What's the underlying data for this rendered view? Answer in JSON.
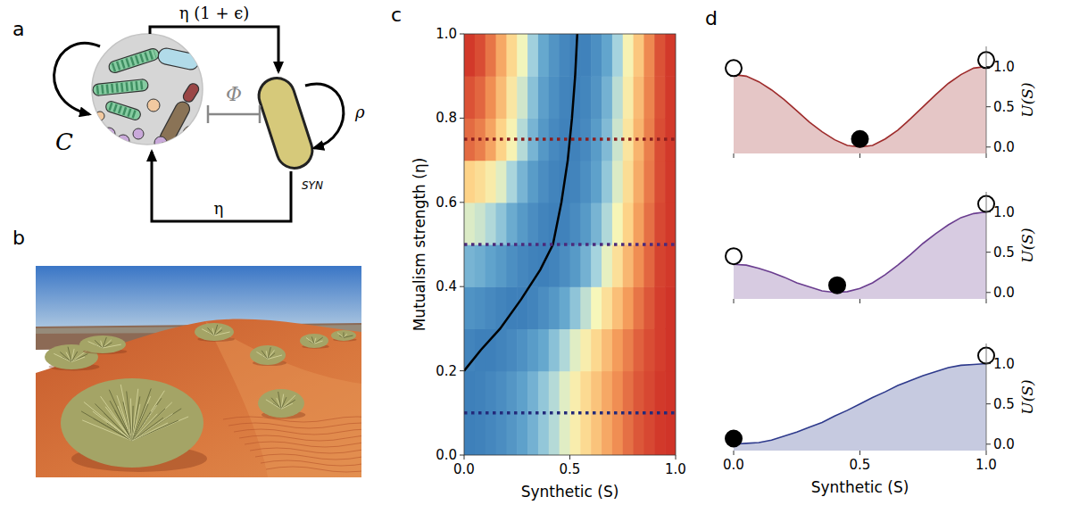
{
  "panel_labels": [
    "a",
    "b",
    "c",
    "d"
  ],
  "diagram": {
    "nodes": [
      {
        "label": "C"
      },
      {
        "label": "SYN"
      }
    ],
    "edges": [
      {
        "label": "η (1 + ϵ)"
      },
      {
        "label": "η"
      },
      {
        "label": "Φ"
      },
      {
        "label": "ρ"
      }
    ]
  },
  "chart_data": [
    {
      "type": "heatmap",
      "x_label": "Synthetic (S)",
      "y_label": "Mutualism strength (η)",
      "xlim": [
        0,
        1
      ],
      "ylim": [
        0,
        1
      ],
      "xticks": [
        {
          "value": 0,
          "label": "0.0"
        },
        0.5,
        {
          "value": 1,
          "label": "1.0"
        }
      ],
      "yticks": [
        {
          "value": 0,
          "label": "0.0"
        },
        0.2,
        0.4,
        0.6,
        0.8,
        {
          "value": 1,
          "label": "1.0"
        }
      ],
      "color_range": [
        0,
        1
      ],
      "x": [
        0.025,
        0.075,
        0.125,
        0.175,
        0.225,
        0.275,
        0.325,
        0.375,
        0.425,
        0.475,
        0.525,
        0.575,
        0.625,
        0.675,
        0.725,
        0.775,
        0.825,
        0.875,
        0.925,
        0.975
      ],
      "y": [
        0.05,
        0.15,
        0.25,
        0.35,
        0.45,
        0.55,
        0.65,
        0.75,
        0.85,
        0.95
      ],
      "cells": [
        [
          0.0,
          0.01,
          0.04,
          0.07,
          0.12,
          0.18,
          0.24,
          0.31,
          0.38,
          0.46,
          0.54,
          0.62,
          0.69,
          0.76,
          0.82,
          0.88,
          0.93,
          0.96,
          0.99,
          1.0
        ],
        [
          0.0,
          0.01,
          0.04,
          0.07,
          0.12,
          0.18,
          0.24,
          0.31,
          0.38,
          0.46,
          0.54,
          0.62,
          0.69,
          0.76,
          0.82,
          0.88,
          0.93,
          0.96,
          0.99,
          1.0
        ],
        [
          0.02,
          0.0,
          0.0,
          0.02,
          0.05,
          0.09,
          0.15,
          0.21,
          0.29,
          0.37,
          0.46,
          0.54,
          0.63,
          0.71,
          0.79,
          0.85,
          0.91,
          0.95,
          0.98,
          1.0
        ],
        [
          0.1,
          0.08,
          0.05,
          0.02,
          0.0,
          0.0,
          0.02,
          0.07,
          0.13,
          0.21,
          0.3,
          0.4,
          0.5,
          0.6,
          0.7,
          0.79,
          0.87,
          0.93,
          0.98,
          1.0
        ],
        [
          0.25,
          0.23,
          0.19,
          0.14,
          0.08,
          0.04,
          0.01,
          0.0,
          0.02,
          0.07,
          0.14,
          0.24,
          0.35,
          0.47,
          0.6,
          0.72,
          0.82,
          0.9,
          0.97,
          0.99
        ],
        [
          0.45,
          0.42,
          0.37,
          0.3,
          0.22,
          0.14,
          0.07,
          0.02,
          0.0,
          0.01,
          0.06,
          0.14,
          0.25,
          0.37,
          0.51,
          0.65,
          0.78,
          0.88,
          0.96,
          0.99
        ],
        [
          0.65,
          0.61,
          0.55,
          0.46,
          0.36,
          0.25,
          0.15,
          0.07,
          0.02,
          0.0,
          0.02,
          0.08,
          0.18,
          0.31,
          0.45,
          0.61,
          0.75,
          0.86,
          0.95,
          0.99
        ],
        [
          0.89,
          0.85,
          0.77,
          0.65,
          0.52,
          0.38,
          0.25,
          0.13,
          0.05,
          0.01,
          0.01,
          0.05,
          0.15,
          0.27,
          0.42,
          0.58,
          0.73,
          0.85,
          0.95,
          0.99
        ],
        [
          0.94,
          0.9,
          0.82,
          0.71,
          0.57,
          0.43,
          0.29,
          0.17,
          0.08,
          0.02,
          0.0,
          0.03,
          0.11,
          0.24,
          0.39,
          0.55,
          0.71,
          0.84,
          0.94,
          0.99
        ],
        [
          0.99,
          0.95,
          0.87,
          0.76,
          0.63,
          0.49,
          0.34,
          0.21,
          0.11,
          0.04,
          0.0,
          0.01,
          0.08,
          0.2,
          0.35,
          0.52,
          0.68,
          0.83,
          0.94,
          0.99
        ]
      ],
      "series": [
        {
          "type": "line",
          "color": "#000000",
          "line_style": "solid",
          "x": [
            0,
            0.08,
            0.17,
            0.27,
            0.36,
            0.42,
            0.46,
            0.49,
            0.51,
            0.525,
            0.535
          ],
          "values": [
            0.2,
            0.25,
            0.3,
            0.37,
            0.44,
            0.5,
            0.6,
            0.7,
            0.8,
            0.9,
            1.0
          ]
        },
        {
          "type": "line",
          "color": "#8b1e1e",
          "line_style": "dotted",
          "x": [
            0,
            1
          ],
          "values": [
            0.75,
            0.75
          ]
        },
        {
          "type": "line",
          "color": "#4b2a7b",
          "line_style": "dotted",
          "x": [
            0,
            1
          ],
          "values": [
            0.5,
            0.5
          ]
        },
        {
          "type": "line",
          "color": "#232a7a",
          "line_style": "dotted",
          "x": [
            0,
            1
          ],
          "values": [
            0.1,
            0.1
          ]
        }
      ]
    },
    {
      "type": "area",
      "y_label": "U(S)",
      "xlim": [
        0,
        1
      ],
      "ylim": [
        -0.08,
        1.25
      ],
      "xticks": [
        0,
        0.5,
        1
      ],
      "yticks": [
        {
          "value": 0,
          "label": "0.0"
        },
        0.5,
        {
          "value": 1,
          "label": "1.0"
        }
      ],
      "tick_labels": "y",
      "series": [
        {
          "type": "area",
          "color": "#9e2b2b",
          "x": [
            0,
            0.05,
            0.1,
            0.15,
            0.2,
            0.25,
            0.3,
            0.35,
            0.4,
            0.45,
            0.5,
            0.55,
            0.6,
            0.65,
            0.7,
            0.75,
            0.8,
            0.85,
            0.9,
            0.95,
            1
          ],
          "values": [
            0.9,
            0.88,
            0.81,
            0.71,
            0.59,
            0.45,
            0.31,
            0.19,
            0.09,
            0.02,
            0.0,
            0.02,
            0.1,
            0.21,
            0.35,
            0.5,
            0.65,
            0.79,
            0.9,
            0.98,
            1.0
          ]
        },
        {
          "type": "scatter",
          "marker": "open-circle",
          "color": "#000000",
          "x": [
            0,
            1
          ],
          "values": [
            0.98,
            1.08
          ]
        },
        {
          "type": "scatter",
          "marker": "circle",
          "color": "#000000",
          "x": [
            0.5
          ],
          "values": [
            0.1
          ]
        }
      ]
    },
    {
      "type": "area",
      "y_label": "U(S)",
      "xlim": [
        0,
        1
      ],
      "ylim": [
        -0.08,
        1.25
      ],
      "xticks": [
        0,
        0.5,
        1
      ],
      "yticks": [
        {
          "value": 0,
          "label": "0.0"
        },
        0.5,
        {
          "value": 1,
          "label": "1.0"
        }
      ],
      "tick_labels": "y",
      "series": [
        {
          "type": "area",
          "color": "#6a3d8f",
          "x": [
            0,
            0.05,
            0.1,
            0.15,
            0.2,
            0.25,
            0.3,
            0.35,
            0.4,
            0.45,
            0.5,
            0.55,
            0.6,
            0.65,
            0.7,
            0.75,
            0.8,
            0.85,
            0.9,
            0.95,
            1
          ],
          "values": [
            0.35,
            0.34,
            0.3,
            0.25,
            0.19,
            0.12,
            0.07,
            0.02,
            0.0,
            0.01,
            0.05,
            0.12,
            0.22,
            0.34,
            0.47,
            0.61,
            0.73,
            0.84,
            0.93,
            0.98,
            1.0
          ]
        },
        {
          "type": "scatter",
          "marker": "open-circle",
          "color": "#000000",
          "x": [
            0,
            1
          ],
          "values": [
            0.45,
            1.1
          ]
        },
        {
          "type": "scatter",
          "marker": "circle",
          "color": "#000000",
          "x": [
            0.41
          ],
          "values": [
            0.09
          ]
        }
      ]
    },
    {
      "type": "area",
      "x_label": "Synthetic (S)",
      "y_label": "U(S)",
      "xlim": [
        0,
        1
      ],
      "ylim": [
        -0.08,
        1.25
      ],
      "xticks": [
        {
          "value": 0,
          "label": "0.0"
        },
        0.5,
        {
          "value": 1,
          "label": "1.0"
        }
      ],
      "yticks": [
        {
          "value": 0,
          "label": "0.0"
        },
        0.5,
        {
          "value": 1,
          "label": "1.0"
        }
      ],
      "tick_labels": true,
      "series": [
        {
          "type": "area",
          "color": "#2e3a8c",
          "x": [
            0,
            0.05,
            0.1,
            0.15,
            0.2,
            0.25,
            0.3,
            0.35,
            0.4,
            0.45,
            0.5,
            0.55,
            0.6,
            0.65,
            0.7,
            0.75,
            0.8,
            0.85,
            0.9,
            0.95,
            1
          ],
          "values": [
            0.0,
            0.01,
            0.02,
            0.05,
            0.1,
            0.15,
            0.21,
            0.27,
            0.35,
            0.42,
            0.5,
            0.58,
            0.65,
            0.73,
            0.79,
            0.85,
            0.9,
            0.95,
            0.98,
            0.99,
            1.0
          ]
        },
        {
          "type": "scatter",
          "marker": "open-circle",
          "color": "#000000",
          "x": [
            1
          ],
          "values": [
            1.1
          ]
        },
        {
          "type": "scatter",
          "marker": "circle",
          "color": "#000000",
          "x": [
            0
          ],
          "values": [
            0.07
          ]
        }
      ]
    }
  ]
}
